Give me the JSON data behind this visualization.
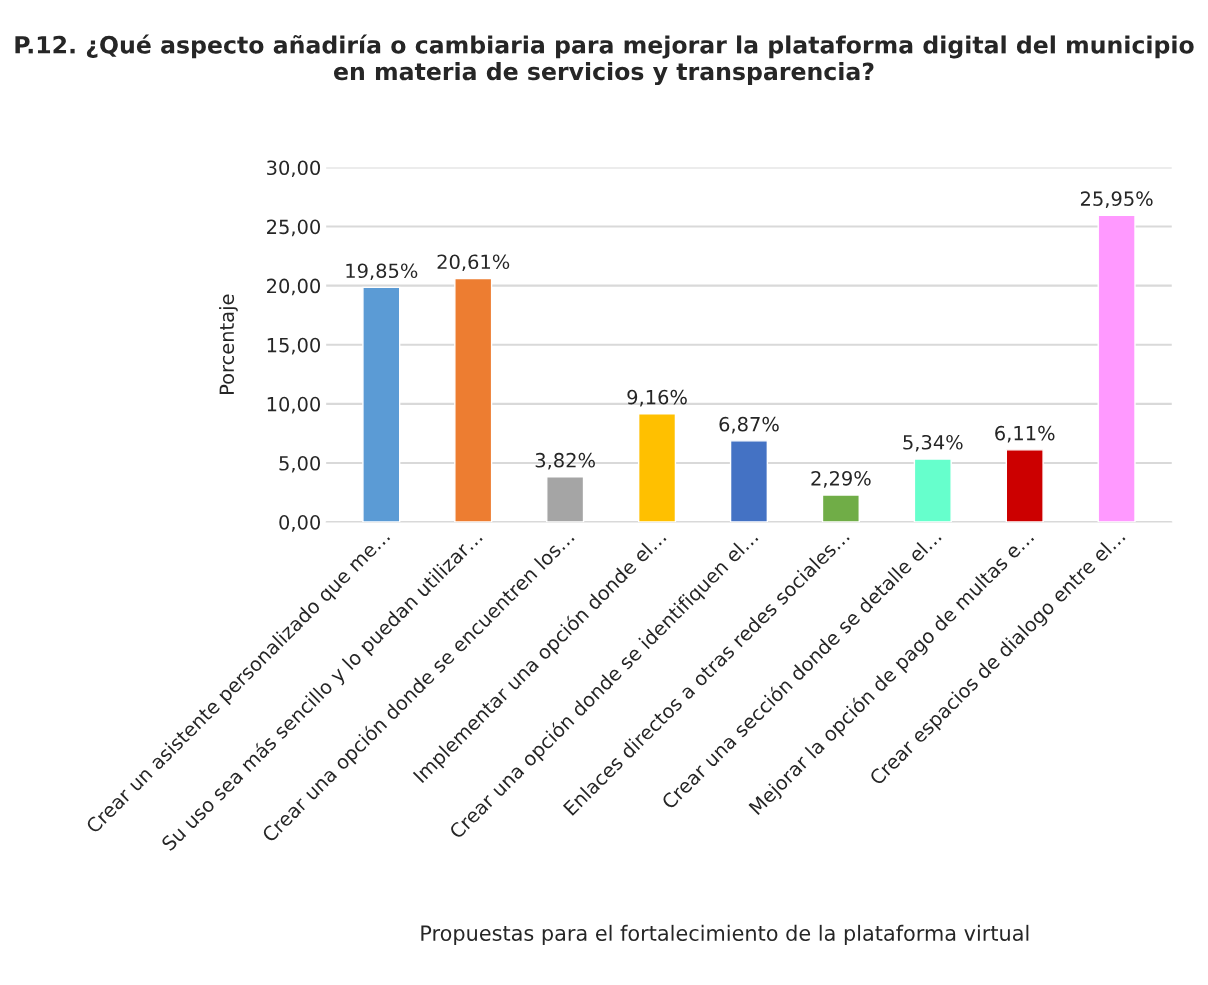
{
  "chart_data": {
    "type": "bar",
    "title": "P.12. ¿Qué aspecto añadiría o cambiaria para mejorar la plataforma digital del municipio en materia de servicios y transparencia?",
    "xlabel": "Propuestas para el fortalecimiento de la plataforma virtual",
    "ylabel": "Porcentaje",
    "categories": [
      "Crear un asistente personalizado que me…",
      "Su uso sea más sencillo y lo puedan utilizar…",
      "Crear una opción donde se encuentren los…",
      "Implementar una opción donde el…",
      "Crear una opción donde se identifiquen el…",
      "Enlaces directos a otras redes sociales…",
      "Crear una sección donde se detalle el…",
      "Mejorar la opción de pago de multas e…",
      "Crear espacios de dialogo entre el…"
    ],
    "values": [
      19.85,
      20.61,
      3.82,
      9.16,
      6.87,
      2.29,
      5.34,
      6.11,
      25.95
    ],
    "value_labels": [
      "19,85%",
      "20,61%",
      "3,82%",
      "9,16%",
      "6,87%",
      "2,29%",
      "5,34%",
      "6,11%",
      "25,95%"
    ],
    "colors": [
      "#5b9bd5",
      "#ed7d31",
      "#a5a5a5",
      "#ffc000",
      "#4472c4",
      "#70ad47",
      "#66ffcc",
      "#cc0000",
      "#ff99ff"
    ],
    "ylim": [
      0,
      30
    ],
    "yticks": [
      {
        "value": 0,
        "label": "0,00"
      },
      {
        "value": 5,
        "label": "5,00"
      },
      {
        "value": 10,
        "label": "10,00"
      },
      {
        "value": 15,
        "label": "15,00"
      },
      {
        "value": 20,
        "label": "20,00"
      },
      {
        "value": 25,
        "label": "25,00"
      },
      {
        "value": 30,
        "label": "30,00"
      }
    ],
    "grid": "y"
  }
}
